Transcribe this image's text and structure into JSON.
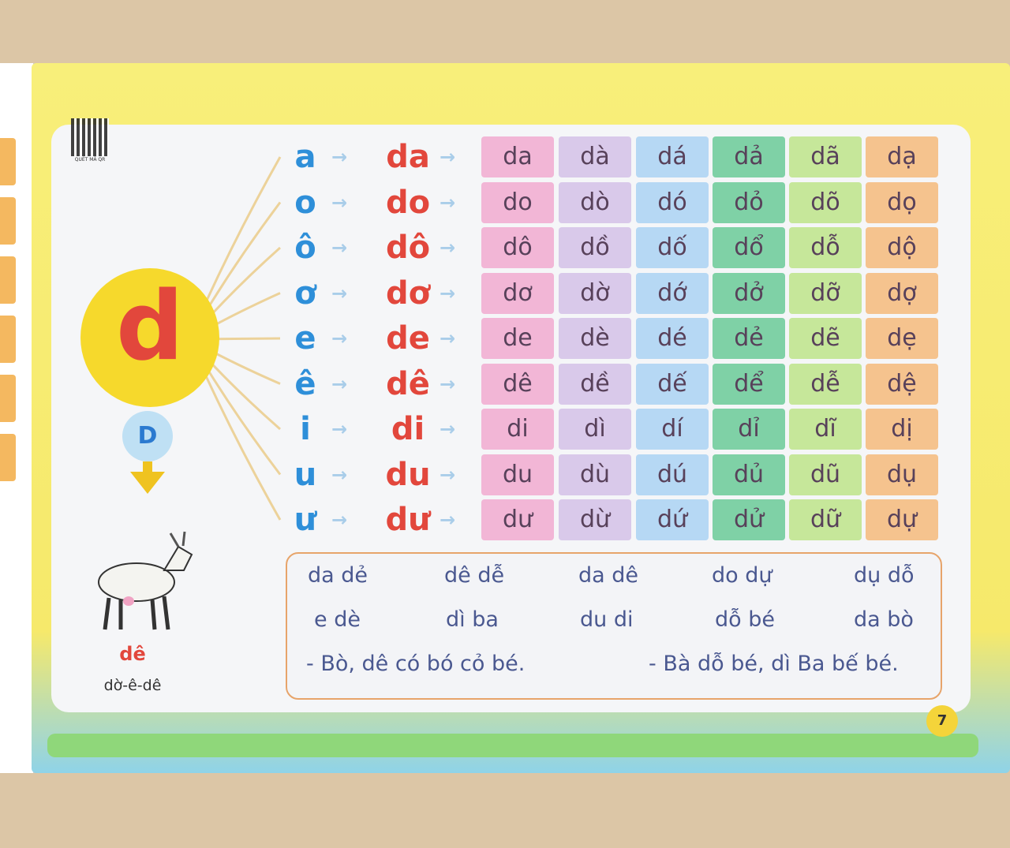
{
  "qr_label": "QUÉT MÃ QR",
  "letter": "d",
  "capital": "D",
  "picture_word": "dê",
  "picture_spelling": "dờ-ê-dê",
  "page_number": "7",
  "colors": {
    "columns": [
      "#f2b6d6",
      "#d9c9ea",
      "#b6d8f4",
      "#7fd1a6",
      "#c6e79a",
      "#f5c38e"
    ],
    "vowel": "#2e8fd9",
    "syllable": "#e2473c",
    "sun": "#f6d92c"
  },
  "rows": [
    {
      "vowel": "a",
      "syllable": "da",
      "tones": [
        "da",
        "dà",
        "dá",
        "dả",
        "dã",
        "dạ"
      ]
    },
    {
      "vowel": "o",
      "syllable": "do",
      "tones": [
        "do",
        "dò",
        "dó",
        "dỏ",
        "dõ",
        "dọ"
      ]
    },
    {
      "vowel": "ô",
      "syllable": "dô",
      "tones": [
        "dô",
        "dồ",
        "dố",
        "dổ",
        "dỗ",
        "dộ"
      ]
    },
    {
      "vowel": "ơ",
      "syllable": "dơ",
      "tones": [
        "dơ",
        "dờ",
        "dớ",
        "dở",
        "dỡ",
        "dợ"
      ]
    },
    {
      "vowel": "e",
      "syllable": "de",
      "tones": [
        "de",
        "dè",
        "dé",
        "dẻ",
        "dẽ",
        "dẹ"
      ]
    },
    {
      "vowel": "ê",
      "syllable": "dê",
      "tones": [
        "dê",
        "dề",
        "dế",
        "dể",
        "dễ",
        "dệ"
      ]
    },
    {
      "vowel": "i",
      "syllable": "di",
      "tones": [
        "di",
        "dì",
        "dí",
        "dỉ",
        "dĩ",
        "dị"
      ]
    },
    {
      "vowel": "u",
      "syllable": "du",
      "tones": [
        "du",
        "dù",
        "dú",
        "dủ",
        "dũ",
        "dụ"
      ]
    },
    {
      "vowel": "ư",
      "syllable": "dư",
      "tones": [
        "dư",
        "dừ",
        "dứ",
        "dử",
        "dữ",
        "dự"
      ]
    }
  ],
  "practice": {
    "words": [
      [
        "da dẻ",
        "dê dễ",
        "da dê",
        "do dự",
        "dụ dỗ"
      ],
      [
        "e dè",
        "dì ba",
        "du di",
        "dỗ bé",
        "da bò"
      ]
    ],
    "sentences": [
      "- Bò, dê có bó cỏ bé.",
      "- Bà dỗ bé, dì Ba bế bé."
    ]
  }
}
